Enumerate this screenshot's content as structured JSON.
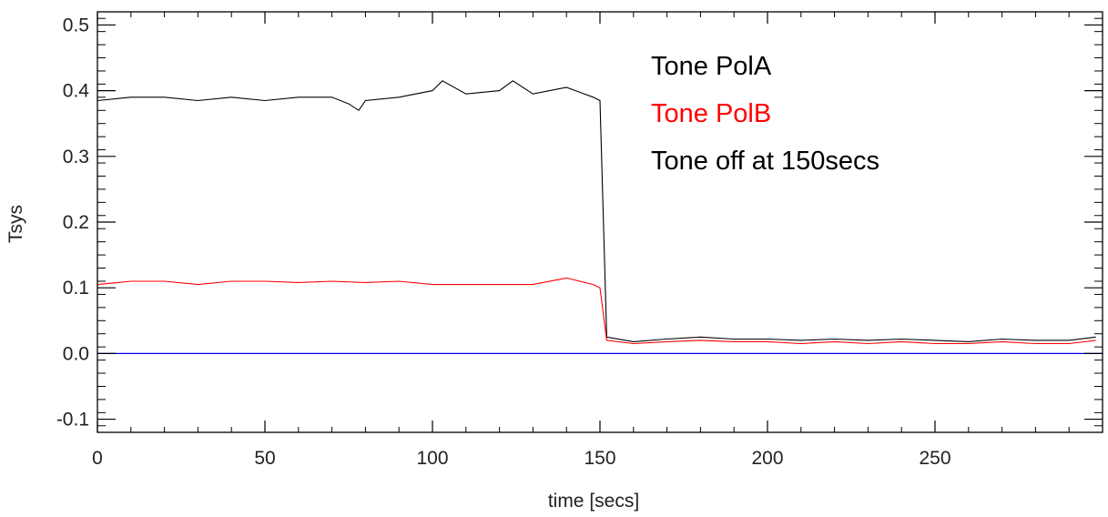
{
  "chart_data": {
    "type": "line",
    "xlabel": "time [secs]",
    "ylabel": "Tsys",
    "xlim": [
      0,
      300
    ],
    "ylim": [
      -0.12,
      0.52
    ],
    "x_ticks": [
      0,
      50,
      100,
      150,
      200,
      250
    ],
    "x_tick_labels": [
      "0",
      "50",
      "100",
      "150",
      "200",
      "250"
    ],
    "y_ticks": [
      -0.1,
      0.0,
      0.1,
      0.2,
      0.3,
      0.4,
      0.5
    ],
    "y_tick_labels": [
      "-0.1",
      "0.0",
      "0.1",
      "0.2",
      "0.3",
      "0.4",
      "0.5"
    ],
    "grid": false,
    "legend_position": "top-right",
    "annotations": [
      {
        "text": "Tone PolA",
        "color": "#000000"
      },
      {
        "text": "Tone PolB",
        "color": "#ff0000"
      },
      {
        "text": "Tone off at 150secs",
        "color": "#000000"
      }
    ],
    "series": [
      {
        "color": "#000000",
        "x": [
          0,
          10,
          20,
          30,
          40,
          50,
          60,
          70,
          75,
          78,
          80,
          90,
          100,
          103,
          110,
          120,
          124,
          130,
          140,
          148,
          150,
          152,
          160,
          170,
          180,
          190,
          200,
          210,
          220,
          230,
          240,
          250,
          260,
          270,
          280,
          290,
          298
        ],
        "y": [
          0.385,
          0.39,
          0.39,
          0.385,
          0.39,
          0.385,
          0.39,
          0.39,
          0.38,
          0.37,
          0.385,
          0.39,
          0.4,
          0.415,
          0.395,
          0.4,
          0.415,
          0.395,
          0.405,
          0.39,
          0.385,
          0.025,
          0.018,
          0.022,
          0.025,
          0.022,
          0.022,
          0.02,
          0.022,
          0.02,
          0.022,
          0.02,
          0.018,
          0.022,
          0.02,
          0.02,
          0.025
        ]
      },
      {
        "color": "#ff0000",
        "x": [
          0,
          10,
          20,
          30,
          40,
          50,
          60,
          70,
          80,
          90,
          100,
          110,
          120,
          130,
          140,
          148,
          150,
          152,
          160,
          170,
          180,
          190,
          200,
          210,
          220,
          230,
          240,
          250,
          260,
          270,
          280,
          290,
          298
        ],
        "y": [
          0.105,
          0.11,
          0.11,
          0.105,
          0.11,
          0.11,
          0.108,
          0.11,
          0.108,
          0.11,
          0.105,
          0.105,
          0.105,
          0.105,
          0.115,
          0.105,
          0.1,
          0.02,
          0.015,
          0.018,
          0.02,
          0.018,
          0.018,
          0.015,
          0.018,
          0.015,
          0.018,
          0.015,
          0.015,
          0.018,
          0.015,
          0.015,
          0.02
        ]
      },
      {
        "color": "#0000ff",
        "x": [
          0,
          300
        ],
        "y": [
          0.0,
          0.0
        ]
      }
    ]
  }
}
